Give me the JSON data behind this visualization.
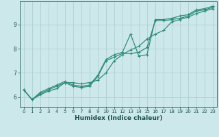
{
  "xlabel": "Humidex (Indice chaleur)",
  "ylabel": "",
  "x_values": [
    0,
    1,
    2,
    3,
    4,
    5,
    6,
    7,
    8,
    9,
    10,
    11,
    12,
    13,
    14,
    15,
    16,
    17,
    18,
    19,
    20,
    21,
    22,
    23
  ],
  "line1": [
    6.3,
    5.9,
    6.2,
    6.35,
    6.5,
    6.65,
    6.5,
    6.45,
    6.5,
    6.9,
    7.55,
    7.75,
    7.85,
    8.6,
    7.7,
    7.75,
    9.2,
    9.2,
    9.25,
    9.35,
    9.4,
    9.6,
    9.65,
    9.75
  ],
  "line2": [
    6.3,
    5.9,
    6.15,
    6.3,
    6.45,
    6.6,
    6.45,
    6.4,
    6.45,
    6.85,
    7.5,
    7.65,
    7.8,
    7.8,
    7.85,
    8.05,
    9.15,
    9.15,
    9.2,
    9.25,
    9.35,
    9.55,
    9.6,
    9.7
  ],
  "line3": [
    6.3,
    5.9,
    6.1,
    6.25,
    6.35,
    6.6,
    6.6,
    6.55,
    6.6,
    6.7,
    7.0,
    7.5,
    7.75,
    7.95,
    8.1,
    8.4,
    8.6,
    8.75,
    9.1,
    9.2,
    9.3,
    9.45,
    9.55,
    9.65
  ],
  "line_color": "#2e8b7a",
  "bg_color": "#cde8ea",
  "grid_color": "#b0d0d3",
  "tick_color": "#2e6b6b",
  "label_color": "#1a5050",
  "xlim": [
    -0.5,
    23.5
  ],
  "ylim": [
    5.6,
    9.95
  ],
  "yticks": [
    6,
    7,
    8,
    9
  ],
  "xticks": [
    0,
    1,
    2,
    3,
    4,
    5,
    6,
    7,
    8,
    9,
    10,
    11,
    12,
    13,
    14,
    15,
    16,
    17,
    18,
    19,
    20,
    21,
    22,
    23
  ],
  "marker": "+",
  "markersize": 3,
  "linewidth": 0.9
}
